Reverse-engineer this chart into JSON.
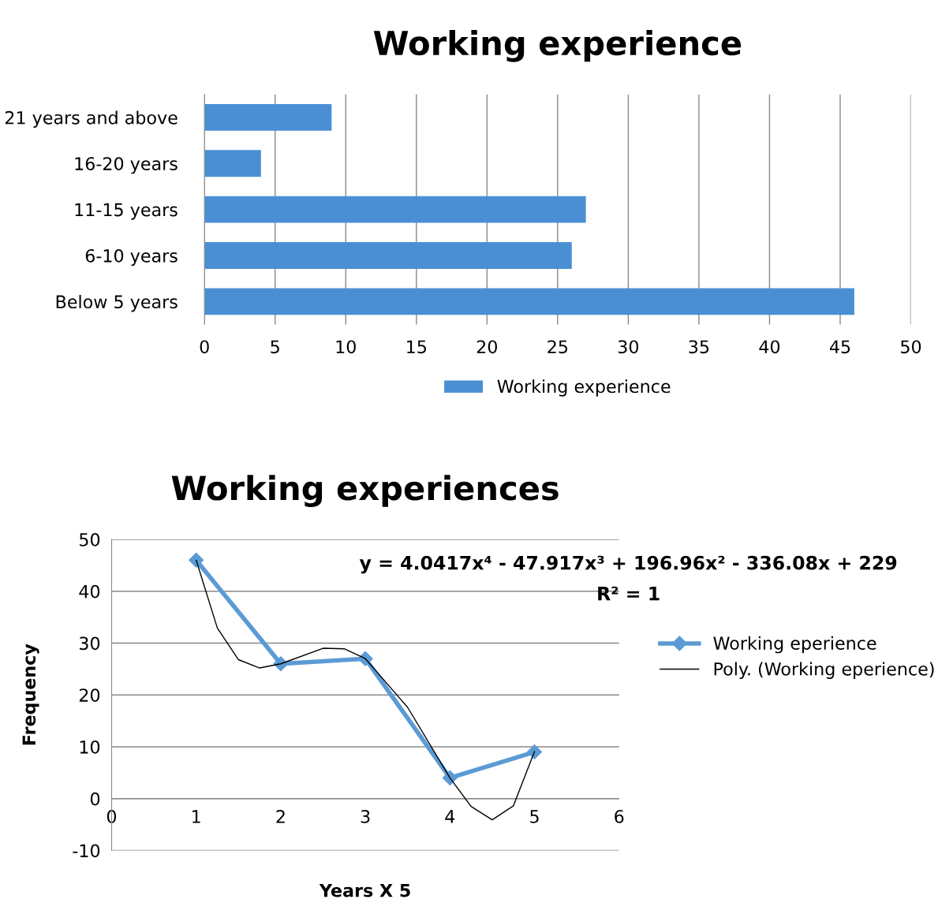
{
  "chart_data": [
    {
      "type": "bar",
      "title": "Working experience",
      "orientation": "horizontal",
      "categories": [
        "21 years and above",
        "16-20 years",
        "11-15 years",
        "6-10 years",
        "Below 5 years"
      ],
      "series": [
        {
          "name": "Working experience",
          "color": "#4a8fd4",
          "values": [
            9,
            4,
            27,
            26,
            46
          ]
        }
      ],
      "xlim": [
        0,
        50
      ],
      "xticks": [
        0,
        5,
        10,
        15,
        20,
        25,
        30,
        35,
        40,
        45,
        50
      ],
      "grid": "x",
      "legend": "bottom"
    },
    {
      "type": "line",
      "title": "Working experiences",
      "xlabel": "Years X 5",
      "ylabel": "Frequency",
      "series": [
        {
          "name": "Working eperience",
          "color": "#5b9bd5",
          "x": [
            1,
            2,
            3,
            4,
            5
          ],
          "values": [
            46,
            26,
            27,
            4,
            9
          ],
          "marker": "diamond"
        },
        {
          "name": "Poly. (Working eperience)",
          "color": "#000000",
          "x": [
            1,
            1.25,
            1.5,
            1.75,
            2,
            2.5,
            2.75,
            3,
            3.5,
            4,
            4.25,
            4.5,
            4.75,
            5
          ],
          "values": [
            46,
            32.9,
            26.8,
            25.2,
            26,
            29,
            28.9,
            27,
            17.6,
            4,
            -1.5,
            -4.1,
            -1.4,
            9.1
          ]
        }
      ],
      "xlim": [
        0,
        6
      ],
      "xticks": [
        0,
        1,
        2,
        3,
        4,
        5,
        6
      ],
      "ylim": [
        -10,
        50
      ],
      "yticks": [
        -10,
        0,
        10,
        20,
        30,
        40,
        50
      ],
      "grid": "y",
      "legend": "right",
      "annotations": [
        "y = 4.0417x⁴ - 47.917x³ + 196.96x² - 336.08x + 229",
        "R² = 1"
      ]
    }
  ]
}
